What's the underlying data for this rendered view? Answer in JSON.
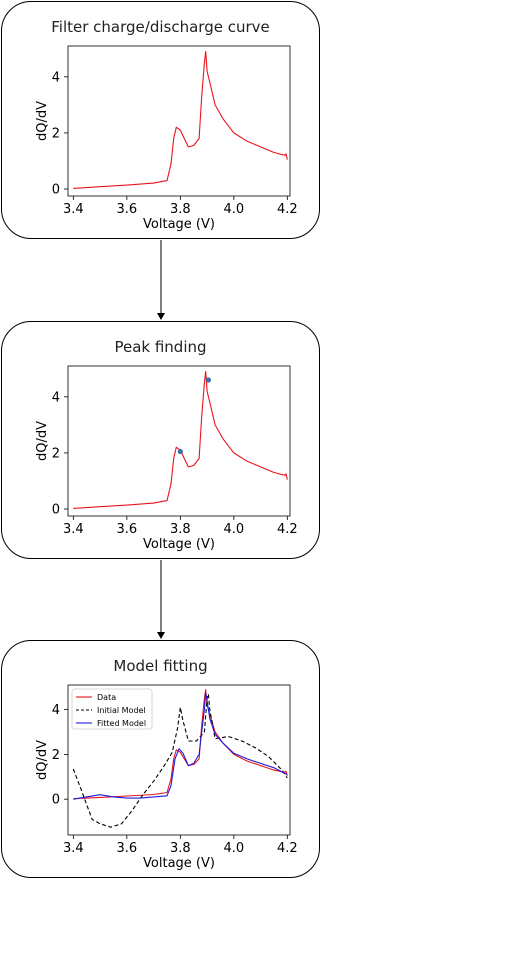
{
  "panels": [
    {
      "title": "Filter charge/discharge curve"
    },
    {
      "title": "Peak finding"
    },
    {
      "title": "Model fitting"
    }
  ],
  "colors": {
    "data": "#e8141c",
    "initial_model": "#000000",
    "fitted_model": "#1c1ce0",
    "peak_marker": "#3a6fa8"
  },
  "chart_data": [
    {
      "type": "line",
      "xlabel": "Voltage (V)",
      "ylabel": "dQ/dV",
      "xlim": [
        3.38,
        4.21
      ],
      "ylim": [
        -0.25,
        5.1
      ],
      "xticks": [
        3.4,
        3.6,
        3.8,
        4.0,
        4.2
      ],
      "xtick_labels": [
        "3.4",
        "3.6",
        "3.8",
        "4.0",
        "4.2"
      ],
      "yticks": [
        0,
        2,
        4
      ],
      "ytick_labels": [
        "0",
        "2",
        "4"
      ],
      "series": [
        {
          "x": [
            3.4,
            3.5,
            3.6,
            3.7,
            3.75,
            3.765,
            3.775,
            3.785,
            3.8,
            3.815,
            3.83,
            3.85,
            3.87,
            3.88,
            3.89,
            3.895,
            3.9,
            3.91,
            3.93,
            3.96,
            4.0,
            4.05,
            4.1,
            4.15,
            4.19,
            4.195,
            4.2
          ],
          "y": [
            0.02,
            0.08,
            0.14,
            0.21,
            0.3,
            0.9,
            1.8,
            2.2,
            2.1,
            1.8,
            1.5,
            1.55,
            1.8,
            3.3,
            4.5,
            4.9,
            4.2,
            3.8,
            3.0,
            2.5,
            2.0,
            1.7,
            1.5,
            1.3,
            1.2,
            1.25,
            1.05
          ],
          "color": "#e8141c",
          "style": "solid"
        }
      ]
    },
    {
      "type": "line",
      "xlabel": "Voltage (V)",
      "ylabel": "dQ/dV",
      "xlim": [
        3.38,
        4.21
      ],
      "ylim": [
        -0.25,
        5.1
      ],
      "xticks": [
        3.4,
        3.6,
        3.8,
        4.0,
        4.2
      ],
      "xtick_labels": [
        "3.4",
        "3.6",
        "3.8",
        "4.0",
        "4.2"
      ],
      "yticks": [
        0,
        2,
        4
      ],
      "ytick_labels": [
        "0",
        "2",
        "4"
      ],
      "series": [
        {
          "x": [
            3.4,
            3.5,
            3.6,
            3.7,
            3.75,
            3.765,
            3.775,
            3.785,
            3.8,
            3.815,
            3.83,
            3.85,
            3.87,
            3.88,
            3.89,
            3.895,
            3.9,
            3.91,
            3.93,
            3.96,
            4.0,
            4.05,
            4.1,
            4.15,
            4.19,
            4.195,
            4.2
          ],
          "y": [
            0.02,
            0.08,
            0.14,
            0.21,
            0.3,
            0.9,
            1.8,
            2.2,
            2.1,
            1.8,
            1.5,
            1.55,
            1.8,
            3.3,
            4.5,
            4.9,
            4.2,
            3.8,
            3.0,
            2.5,
            2.0,
            1.7,
            1.5,
            1.3,
            1.2,
            1.25,
            1.05
          ],
          "color": "#e8141c",
          "style": "solid"
        }
      ],
      "peaks": [
        {
          "x": 3.8,
          "y": 2.05
        },
        {
          "x": 3.905,
          "y": 4.6
        }
      ]
    },
    {
      "type": "line",
      "xlabel": "Voltage (V)",
      "ylabel": "dQ/dV",
      "xlim": [
        3.38,
        4.21
      ],
      "ylim": [
        -1.6,
        5.1
      ],
      "xticks": [
        3.4,
        3.6,
        3.8,
        4.0,
        4.2
      ],
      "xtick_labels": [
        "3.4",
        "3.6",
        "3.8",
        "4.0",
        "4.2"
      ],
      "yticks": [
        0,
        2,
        4
      ],
      "ytick_labels": [
        "0",
        "2",
        "4"
      ],
      "legend": "upper-left",
      "series": [
        {
          "name": "Data",
          "x": [
            3.4,
            3.5,
            3.6,
            3.7,
            3.75,
            3.765,
            3.775,
            3.785,
            3.8,
            3.815,
            3.83,
            3.85,
            3.87,
            3.88,
            3.89,
            3.895,
            3.9,
            3.91,
            3.93,
            3.96,
            4.0,
            4.05,
            4.1,
            4.15,
            4.19,
            4.195,
            4.2
          ],
          "y": [
            0.02,
            0.08,
            0.14,
            0.21,
            0.3,
            0.9,
            1.8,
            2.2,
            2.1,
            1.8,
            1.5,
            1.55,
            1.8,
            3.3,
            4.5,
            4.9,
            4.2,
            3.8,
            3.0,
            2.5,
            2.0,
            1.7,
            1.5,
            1.3,
            1.2,
            1.25,
            1.05
          ],
          "color": "#e8141c",
          "style": "solid"
        },
        {
          "name": "Initial Model",
          "x": [
            3.4,
            3.43,
            3.47,
            3.5,
            3.54,
            3.58,
            3.62,
            3.66,
            3.7,
            3.74,
            3.77,
            3.79,
            3.8,
            3.81,
            3.83,
            3.86,
            3.89,
            3.9,
            3.905,
            3.91,
            3.93,
            3.98,
            4.03,
            4.08,
            4.13,
            4.18,
            4.2
          ],
          "y": [
            1.35,
            0.4,
            -0.9,
            -1.1,
            -1.25,
            -1.1,
            -0.5,
            0.2,
            0.8,
            1.5,
            2.1,
            3.2,
            4.1,
            3.5,
            2.6,
            2.6,
            3.0,
            4.5,
            4.7,
            4.0,
            2.7,
            2.8,
            2.6,
            2.3,
            1.9,
            1.3,
            0.95
          ],
          "color": "#000000",
          "style": "dashed"
        },
        {
          "name": "Fitted Model",
          "x": [
            3.4,
            3.45,
            3.5,
            3.55,
            3.6,
            3.65,
            3.7,
            3.75,
            3.765,
            3.78,
            3.795,
            3.81,
            3.83,
            3.85,
            3.87,
            3.88,
            3.89,
            3.895,
            3.9,
            3.91,
            3.93,
            3.96,
            4.0,
            4.05,
            4.1,
            4.15,
            4.2
          ],
          "y": [
            0.0,
            0.1,
            0.2,
            0.1,
            0.05,
            0.05,
            0.1,
            0.15,
            0.6,
            1.8,
            2.25,
            2.05,
            1.5,
            1.6,
            2.0,
            3.0,
            4.0,
            4.75,
            4.4,
            3.6,
            2.9,
            2.5,
            2.05,
            1.8,
            1.6,
            1.4,
            1.1
          ],
          "color": "#1c1ce0",
          "style": "solid"
        }
      ]
    }
  ]
}
